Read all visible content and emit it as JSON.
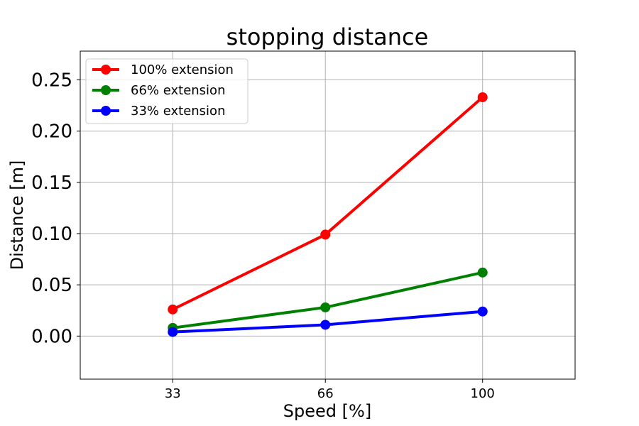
{
  "chart_data": {
    "type": "line",
    "title": "stopping distance",
    "xlabel": "Speed [%]",
    "ylabel": "Distance [m]",
    "x": [
      33,
      66,
      100
    ],
    "x_ticks": [
      "33",
      "66",
      "100"
    ],
    "y_ticks": [
      "0.00",
      "0.05",
      "0.10",
      "0.15",
      "0.20",
      "0.25"
    ],
    "ylim": [
      -0.042,
      0.278
    ],
    "grid": true,
    "legend_position": "top-left",
    "series": [
      {
        "name": "100% extension",
        "color": "#ff0000",
        "marker": "circle",
        "values": [
          0.026,
          0.099,
          0.233
        ]
      },
      {
        "name": "66% extension",
        "color": "#008000",
        "marker": "circle",
        "values": [
          0.008,
          0.028,
          0.062
        ]
      },
      {
        "name": "33% extension",
        "color": "#0000ff",
        "marker": "circle",
        "values": [
          0.004,
          0.011,
          0.024
        ]
      }
    ]
  }
}
